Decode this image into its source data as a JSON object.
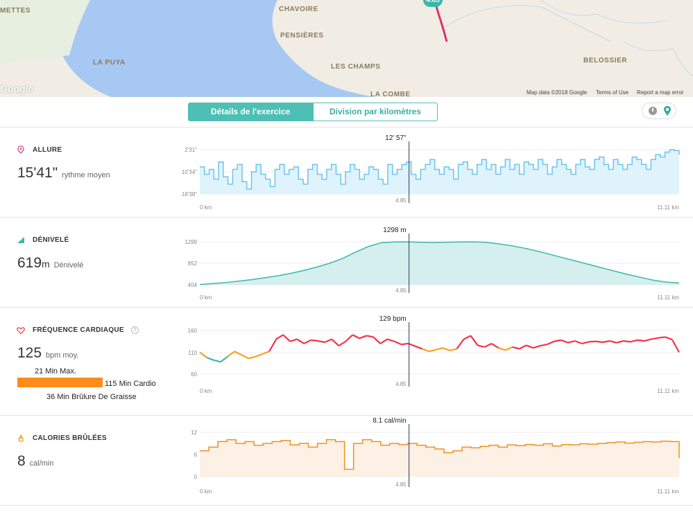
{
  "map": {
    "labels": [
      "METTES",
      "CHAVOIRE",
      "PENSIÈRES",
      "LA PUYA",
      "LES CHAMPS",
      "BELOSSIER",
      "LA COMBE"
    ],
    "marker_label": "4.85",
    "google": "Google",
    "footer": [
      "Map data ©2018 Google",
      "Terms of Use",
      "Report a map error"
    ]
  },
  "tabs": {
    "details": "Détails de l'exercice",
    "split": "Division par kilomètres"
  },
  "toggle": {
    "left_icon": "clock-icon",
    "right_icon": "map-pin-icon"
  },
  "sections": {
    "pace": {
      "title": "ALLURE",
      "value": "15'41\"",
      "unit": "rythme moyen"
    },
    "elevation": {
      "title": "DÉNIVELÉ",
      "value": "619",
      "unit_short": "m",
      "unit": "Dénivelé"
    },
    "heart": {
      "title": "FRÉQUENCE CARDIAQUE",
      "info": "?",
      "value": "125",
      "unit": "bpm moy.",
      "zones": {
        "max": "21 Min Max.",
        "cardio": "115 Min Cardio",
        "fat": "36 Min Brûlure De Graisse"
      }
    },
    "calories": {
      "title": "CALORIES BRÛLÉES",
      "value": "8",
      "unit": "cal/min"
    }
  },
  "colors": {
    "teal": "#4dbfb5",
    "pace": "#6cc4ee",
    "heart_high": "#f5314a",
    "heart_mid": "#f7a21b",
    "heart_low": "#3bb8b2",
    "calories": "#f0901e",
    "pink_icon": "#e0457b"
  },
  "chart_data": [
    {
      "type": "line",
      "name": "pace",
      "x_start_label": "0 km",
      "x_end_label": "11.11 km",
      "x_range": [
        0,
        11.11
      ],
      "yticks": [
        "2'31\"",
        "10'34\"",
        "18'38\""
      ],
      "cursor": {
        "x": 4.85,
        "x_label": "4.85",
        "value_label": "12' 57\""
      },
      "series": [
        {
          "values": [
            12.5,
            14,
            13,
            15,
            11.5,
            14.5,
            16,
            13,
            12,
            15.5,
            17,
            13.5,
            12,
            14,
            15,
            16.5,
            13,
            12,
            14,
            13,
            12.5,
            15,
            16,
            13,
            12,
            14,
            15,
            13,
            12,
            14,
            16,
            13.5,
            12,
            13,
            15,
            14,
            12.5,
            13,
            15,
            16,
            12,
            14,
            13,
            12,
            11.5,
            14,
            15,
            13,
            12,
            11,
            13,
            14,
            12.5,
            13,
            15,
            12,
            11.5,
            13,
            14,
            12,
            11,
            13,
            12,
            14,
            12.5,
            11,
            13,
            12,
            14,
            11.5,
            12,
            13,
            11,
            12,
            14,
            12.5,
            11,
            12,
            13,
            14,
            12,
            11,
            12.5,
            13,
            11,
            10.5,
            12,
            13,
            11,
            12,
            13,
            12,
            10.5,
            11,
            12,
            13,
            11,
            10,
            10.5,
            9.5,
            9,
            9.2,
            10
          ]
        }
      ]
    },
    {
      "type": "area",
      "name": "elevation",
      "x_start_label": "0 km",
      "x_end_label": "11.11 km",
      "x_range": [
        0,
        11.11
      ],
      "yticks": [
        "1299",
        "852",
        "404"
      ],
      "ylim": [
        404,
        1299
      ],
      "cursor": {
        "x": 4.85,
        "x_label": "4.85",
        "value_label": "1298 m"
      },
      "series": [
        {
          "values": [
            410,
            430,
            450,
            480,
            510,
            550,
            590,
            640,
            700,
            770,
            850,
            950,
            1080,
            1200,
            1280,
            1295,
            1298,
            1290,
            1285,
            1290,
            1295,
            1298,
            1290,
            1260,
            1220,
            1170,
            1110,
            1040,
            970,
            900,
            830,
            760,
            690,
            620,
            560,
            500,
            460,
            440
          ]
        }
      ]
    },
    {
      "type": "line",
      "name": "heart_rate",
      "x_start_label": "0 km",
      "x_end_label": "11.11 km",
      "x_range": [
        0,
        11.11
      ],
      "yticks": [
        "160",
        "110",
        "60"
      ],
      "ylim": [
        60,
        160
      ],
      "cursor": {
        "x": 4.85,
        "x_label": "4.85",
        "value_label": "129 bpm"
      },
      "series": [
        {
          "values": [
            110,
            98,
            92,
            88,
            100,
            112,
            104,
            96,
            100,
            106,
            112,
            140,
            150,
            135,
            140,
            130,
            138,
            136,
            133,
            140,
            125,
            135,
            150,
            142,
            148,
            145,
            130,
            140,
            135,
            128,
            130,
            124,
            118,
            112,
            116,
            120,
            114,
            118,
            140,
            148,
            126,
            122,
            130,
            120,
            115,
            122,
            118,
            126,
            120,
            125,
            128,
            135,
            138,
            132,
            136,
            130,
            134,
            135,
            133,
            136,
            132,
            136,
            134,
            138,
            136,
            140,
            143,
            145,
            139,
            110
          ]
        }
      ]
    },
    {
      "type": "line",
      "name": "calories",
      "x_start_label": "0 km",
      "x_end_label": "11.11 km",
      "x_range": [
        0,
        11.11
      ],
      "yticks": [
        "12",
        "6",
        "0"
      ],
      "ylim": [
        0,
        12
      ],
      "cursor": {
        "x": 4.85,
        "x_label": "4.85",
        "value_label": "8.1 cal/min"
      },
      "series": [
        {
          "values": [
            7,
            8,
            9.5,
            10,
            9,
            9.5,
            8.5,
            9,
            9.5,
            9.8,
            8.6,
            9,
            8,
            9,
            10,
            9.5,
            2,
            9,
            10,
            9.5,
            8.5,
            9,
            8.7,
            9,
            8.5,
            8,
            7.5,
            6.5,
            7,
            8,
            7.8,
            8.2,
            8.5,
            8,
            8.6,
            8.4,
            8.7,
            8.5,
            8.9,
            8.3,
            8.7,
            8.6,
            8.9,
            8.8,
            9,
            9.2,
            9.4,
            9.1,
            9.3,
            9.5,
            9.4,
            9.6,
            9.5,
            5
          ]
        }
      ]
    }
  ]
}
